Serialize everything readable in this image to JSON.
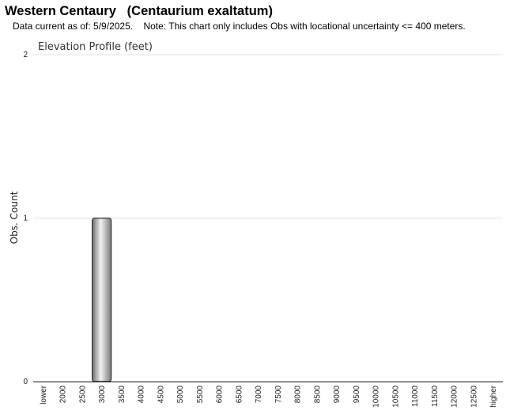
{
  "header": {
    "common_name": "Western Centaury",
    "scientific_name": "(Centaurium exaltatum)",
    "data_current": "Data current as of: 5/9/2025.",
    "note": "Note: This chart only includes Obs with locational uncertainty <= 400 meters."
  },
  "chart_data": {
    "type": "bar",
    "title": "Elevation Profile (feet)",
    "xlabel": "",
    "ylabel": "Obs. Count",
    "categories": [
      "lower",
      "2000",
      "2500",
      "3000",
      "3500",
      "4000",
      "4500",
      "5000",
      "5500",
      "6000",
      "6500",
      "7000",
      "7500",
      "8000",
      "8500",
      "9000",
      "9500",
      "10000",
      "10500",
      "11000",
      "11500",
      "12000",
      "12500",
      "higher"
    ],
    "values": [
      0,
      0,
      0,
      1,
      0,
      0,
      0,
      0,
      0,
      0,
      0,
      0,
      0,
      0,
      0,
      0,
      0,
      0,
      0,
      0,
      0,
      0,
      0,
      0
    ],
    "ylim": [
      0,
      2
    ],
    "yticks": [
      0,
      1,
      2
    ],
    "grid": true,
    "legend": "none",
    "bar_color": "#b0b0b0"
  }
}
